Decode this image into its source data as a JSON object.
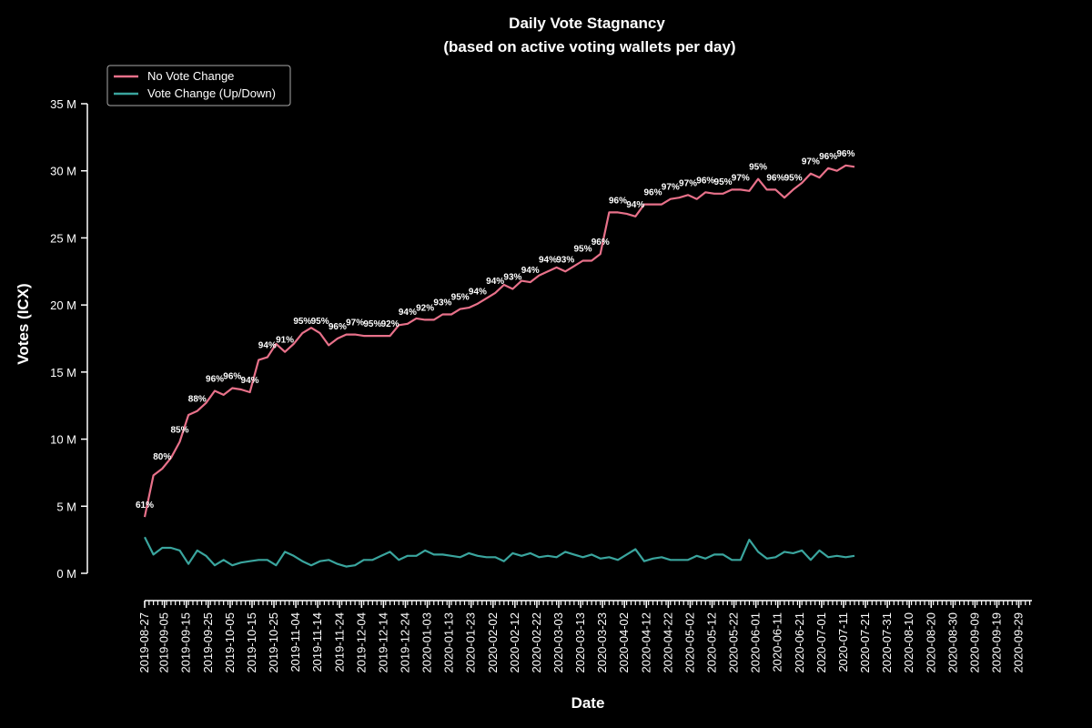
{
  "chart_data": {
    "type": "line",
    "title": "Daily Vote Stagnancy",
    "subtitle": "(based on active voting wallets per day)",
    "xlabel": "Date",
    "ylabel": "Votes (ICX)",
    "ylim": [
      0,
      35000000
    ],
    "yticks": [
      {
        "value": 0,
        "label": "0 M"
      },
      {
        "value": 5000000,
        "label": "5 M"
      },
      {
        "value": 10000000,
        "label": "10 M"
      },
      {
        "value": 15000000,
        "label": "15 M"
      },
      {
        "value": 20000000,
        "label": "20 M"
      },
      {
        "value": 25000000,
        "label": "25 M"
      },
      {
        "value": 30000000,
        "label": "30 M"
      },
      {
        "value": 35000000,
        "label": "35 M"
      }
    ],
    "xlim": [
      "2019-08-27",
      "2020-10-05"
    ],
    "xtick_labels": [
      "2019-08-27",
      "2019-09-05",
      "2019-09-15",
      "2019-09-25",
      "2019-10-05",
      "2019-10-15",
      "2019-10-25",
      "2019-11-04",
      "2019-11-14",
      "2019-11-24",
      "2019-12-04",
      "2019-12-14",
      "2019-12-24",
      "2020-01-03",
      "2020-01-13",
      "2020-01-23",
      "2020-02-02",
      "2020-02-12",
      "2020-02-22",
      "2020-03-03",
      "2020-03-13",
      "2020-03-23",
      "2020-04-02",
      "2020-04-12",
      "2020-04-22",
      "2020-05-02",
      "2020-05-12",
      "2020-05-22",
      "2020-06-01",
      "2020-06-11",
      "2020-06-21",
      "2020-07-01",
      "2020-07-11",
      "2020-07-21",
      "2020-07-31",
      "2020-08-10",
      "2020-08-20",
      "2020-08-30",
      "2020-09-09",
      "2020-09-19",
      "2020-09-29"
    ],
    "legend": {
      "placement": "top-left"
    },
    "series": [
      {
        "name": "No Vote Change",
        "color": "#e8718a",
        "points": [
          {
            "x": "2019-08-27",
            "y": 4.2
          },
          {
            "x": "2019-08-31",
            "y": 7.3
          },
          {
            "x": "2019-09-04",
            "y": 7.8
          },
          {
            "x": "2019-09-08",
            "y": 8.6
          },
          {
            "x": "2019-09-12",
            "y": 9.8
          },
          {
            "x": "2019-09-16",
            "y": 11.8
          },
          {
            "x": "2019-09-20",
            "y": 12.1
          },
          {
            "x": "2019-09-24",
            "y": 12.7
          },
          {
            "x": "2019-09-28",
            "y": 13.6
          },
          {
            "x": "2019-10-02",
            "y": 13.3
          },
          {
            "x": "2019-10-06",
            "y": 13.8
          },
          {
            "x": "2019-10-10",
            "y": 13.7
          },
          {
            "x": "2019-10-14",
            "y": 13.5
          },
          {
            "x": "2019-10-18",
            "y": 15.9
          },
          {
            "x": "2019-10-22",
            "y": 16.1
          },
          {
            "x": "2019-10-26",
            "y": 17.1
          },
          {
            "x": "2019-10-30",
            "y": 16.5
          },
          {
            "x": "2019-11-03",
            "y": 17.1
          },
          {
            "x": "2019-11-07",
            "y": 17.9
          },
          {
            "x": "2019-11-11",
            "y": 18.3
          },
          {
            "x": "2019-11-15",
            "y": 17.9
          },
          {
            "x": "2019-11-19",
            "y": 17.0
          },
          {
            "x": "2019-11-23",
            "y": 17.5
          },
          {
            "x": "2019-11-27",
            "y": 17.8
          },
          {
            "x": "2019-12-01",
            "y": 17.8
          },
          {
            "x": "2019-12-05",
            "y": 17.7
          },
          {
            "x": "2019-12-09",
            "y": 17.7
          },
          {
            "x": "2019-12-13",
            "y": 17.7
          },
          {
            "x": "2019-12-17",
            "y": 17.7
          },
          {
            "x": "2019-12-21",
            "y": 18.5
          },
          {
            "x": "2019-12-25",
            "y": 18.6
          },
          {
            "x": "2019-12-29",
            "y": 19.0
          },
          {
            "x": "2020-01-02",
            "y": 18.9
          },
          {
            "x": "2020-01-06",
            "y": 18.9
          },
          {
            "x": "2020-01-10",
            "y": 19.3
          },
          {
            "x": "2020-01-14",
            "y": 19.3
          },
          {
            "x": "2020-01-18",
            "y": 19.7
          },
          {
            "x": "2020-01-22",
            "y": 19.8
          },
          {
            "x": "2020-01-26",
            "y": 20.1
          },
          {
            "x": "2020-01-30",
            "y": 20.5
          },
          {
            "x": "2020-02-03",
            "y": 20.9
          },
          {
            "x": "2020-02-07",
            "y": 21.5
          },
          {
            "x": "2020-02-11",
            "y": 21.2
          },
          {
            "x": "2020-02-15",
            "y": 21.8
          },
          {
            "x": "2020-02-19",
            "y": 21.7
          },
          {
            "x": "2020-02-23",
            "y": 22.2
          },
          {
            "x": "2020-02-27",
            "y": 22.5
          },
          {
            "x": "2020-03-02",
            "y": 22.8
          },
          {
            "x": "2020-03-06",
            "y": 22.5
          },
          {
            "x": "2020-03-10",
            "y": 22.9
          },
          {
            "x": "2020-03-14",
            "y": 23.3
          },
          {
            "x": "2020-03-18",
            "y": 23.3
          },
          {
            "x": "2020-03-22",
            "y": 23.8
          },
          {
            "x": "2020-03-26",
            "y": 26.9
          },
          {
            "x": "2020-03-30",
            "y": 26.9
          },
          {
            "x": "2020-04-03",
            "y": 26.8
          },
          {
            "x": "2020-04-07",
            "y": 26.6
          },
          {
            "x": "2020-04-11",
            "y": 27.5
          },
          {
            "x": "2020-04-15",
            "y": 27.5
          },
          {
            "x": "2020-04-19",
            "y": 27.5
          },
          {
            "x": "2020-04-23",
            "y": 27.9
          },
          {
            "x": "2020-04-27",
            "y": 28.0
          },
          {
            "x": "2020-05-01",
            "y": 28.2
          },
          {
            "x": "2020-05-05",
            "y": 27.9
          },
          {
            "x": "2020-05-09",
            "y": 28.4
          },
          {
            "x": "2020-05-13",
            "y": 28.3
          },
          {
            "x": "2020-05-17",
            "y": 28.3
          },
          {
            "x": "2020-05-21",
            "y": 28.6
          },
          {
            "x": "2020-05-25",
            "y": 28.6
          },
          {
            "x": "2020-05-29",
            "y": 28.5
          },
          {
            "x": "2020-06-02",
            "y": 29.4
          },
          {
            "x": "2020-06-06",
            "y": 28.6
          },
          {
            "x": "2020-06-10",
            "y": 28.6
          },
          {
            "x": "2020-06-14",
            "y": 28.0
          },
          {
            "x": "2020-06-18",
            "y": 28.6
          },
          {
            "x": "2020-06-22",
            "y": 29.1
          },
          {
            "x": "2020-06-26",
            "y": 29.8
          },
          {
            "x": "2020-06-30",
            "y": 29.5
          },
          {
            "x": "2020-07-04",
            "y": 30.2
          },
          {
            "x": "2020-07-08",
            "y": 30.0
          },
          {
            "x": "2020-07-12",
            "y": 30.4
          },
          {
            "x": "2020-07-16",
            "y": 30.3
          }
        ]
      },
      {
        "name": "Vote Change (Up/Down)",
        "color": "#3aa59e",
        "points": [
          {
            "x": "2019-08-27",
            "y": 2.7
          },
          {
            "x": "2019-08-31",
            "y": 1.4
          },
          {
            "x": "2019-09-04",
            "y": 1.9
          },
          {
            "x": "2019-09-08",
            "y": 1.9
          },
          {
            "x": "2019-09-12",
            "y": 1.7
          },
          {
            "x": "2019-09-16",
            "y": 0.7
          },
          {
            "x": "2019-09-20",
            "y": 1.7
          },
          {
            "x": "2019-09-24",
            "y": 1.3
          },
          {
            "x": "2019-09-28",
            "y": 0.6
          },
          {
            "x": "2019-10-02",
            "y": 1.0
          },
          {
            "x": "2019-10-06",
            "y": 0.6
          },
          {
            "x": "2019-10-10",
            "y": 0.8
          },
          {
            "x": "2019-10-14",
            "y": 0.9
          },
          {
            "x": "2019-10-18",
            "y": 1.0
          },
          {
            "x": "2019-10-22",
            "y": 1.0
          },
          {
            "x": "2019-10-26",
            "y": 0.6
          },
          {
            "x": "2019-10-30",
            "y": 1.6
          },
          {
            "x": "2019-11-03",
            "y": 1.3
          },
          {
            "x": "2019-11-07",
            "y": 0.9
          },
          {
            "x": "2019-11-11",
            "y": 0.6
          },
          {
            "x": "2019-11-15",
            "y": 0.9
          },
          {
            "x": "2019-11-19",
            "y": 1.0
          },
          {
            "x": "2019-11-23",
            "y": 0.7
          },
          {
            "x": "2019-11-27",
            "y": 0.5
          },
          {
            "x": "2019-12-01",
            "y": 0.6
          },
          {
            "x": "2019-12-05",
            "y": 1.0
          },
          {
            "x": "2019-12-09",
            "y": 1.0
          },
          {
            "x": "2019-12-13",
            "y": 1.3
          },
          {
            "x": "2019-12-17",
            "y": 1.6
          },
          {
            "x": "2019-12-21",
            "y": 1.0
          },
          {
            "x": "2019-12-25",
            "y": 1.3
          },
          {
            "x": "2019-12-29",
            "y": 1.3
          },
          {
            "x": "2020-01-02",
            "y": 1.7
          },
          {
            "x": "2020-01-06",
            "y": 1.4
          },
          {
            "x": "2020-01-10",
            "y": 1.4
          },
          {
            "x": "2020-01-14",
            "y": 1.3
          },
          {
            "x": "2020-01-18",
            "y": 1.2
          },
          {
            "x": "2020-01-22",
            "y": 1.5
          },
          {
            "x": "2020-01-26",
            "y": 1.3
          },
          {
            "x": "2020-01-30",
            "y": 1.2
          },
          {
            "x": "2020-02-03",
            "y": 1.2
          },
          {
            "x": "2020-02-07",
            "y": 0.9
          },
          {
            "x": "2020-02-11",
            "y": 1.5
          },
          {
            "x": "2020-02-15",
            "y": 1.3
          },
          {
            "x": "2020-02-19",
            "y": 1.5
          },
          {
            "x": "2020-02-23",
            "y": 1.2
          },
          {
            "x": "2020-02-27",
            "y": 1.3
          },
          {
            "x": "2020-03-02",
            "y": 1.2
          },
          {
            "x": "2020-03-06",
            "y": 1.6
          },
          {
            "x": "2020-03-10",
            "y": 1.4
          },
          {
            "x": "2020-03-14",
            "y": 1.2
          },
          {
            "x": "2020-03-18",
            "y": 1.4
          },
          {
            "x": "2020-03-22",
            "y": 1.1
          },
          {
            "x": "2020-03-26",
            "y": 1.2
          },
          {
            "x": "2020-03-30",
            "y": 1.0
          },
          {
            "x": "2020-04-03",
            "y": 1.4
          },
          {
            "x": "2020-04-07",
            "y": 1.8
          },
          {
            "x": "2020-04-11",
            "y": 0.9
          },
          {
            "x": "2020-04-15",
            "y": 1.1
          },
          {
            "x": "2020-04-19",
            "y": 1.2
          },
          {
            "x": "2020-04-23",
            "y": 1.0
          },
          {
            "x": "2020-04-27",
            "y": 1.0
          },
          {
            "x": "2020-05-01",
            "y": 1.0
          },
          {
            "x": "2020-05-05",
            "y": 1.3
          },
          {
            "x": "2020-05-09",
            "y": 1.1
          },
          {
            "x": "2020-05-13",
            "y": 1.4
          },
          {
            "x": "2020-05-17",
            "y": 1.4
          },
          {
            "x": "2020-05-21",
            "y": 1.0
          },
          {
            "x": "2020-05-25",
            "y": 1.0
          },
          {
            "x": "2020-05-29",
            "y": 2.5
          },
          {
            "x": "2020-06-02",
            "y": 1.6
          },
          {
            "x": "2020-06-06",
            "y": 1.1
          },
          {
            "x": "2020-06-10",
            "y": 1.2
          },
          {
            "x": "2020-06-14",
            "y": 1.6
          },
          {
            "x": "2020-06-18",
            "y": 1.5
          },
          {
            "x": "2020-06-22",
            "y": 1.7
          },
          {
            "x": "2020-06-26",
            "y": 1.0
          },
          {
            "x": "2020-06-30",
            "y": 1.7
          },
          {
            "x": "2020-07-04",
            "y": 1.2
          },
          {
            "x": "2020-07-08",
            "y": 1.3
          },
          {
            "x": "2020-07-12",
            "y": 1.2
          },
          {
            "x": "2020-07-16",
            "y": 1.3
          }
        ]
      }
    ],
    "annotations": [
      {
        "x": "2019-08-27",
        "y": 4.2,
        "text": "61%"
      },
      {
        "x": "2019-09-04",
        "y": 7.8,
        "text": "80%"
      },
      {
        "x": "2019-09-12",
        "y": 9.8,
        "text": "85%"
      },
      {
        "x": "2019-09-20",
        "y": 12.1,
        "text": "88%"
      },
      {
        "x": "2019-09-28",
        "y": 13.6,
        "text": "96%"
      },
      {
        "x": "2019-10-06",
        "y": 13.8,
        "text": "96%"
      },
      {
        "x": "2019-10-14",
        "y": 13.5,
        "text": "94%"
      },
      {
        "x": "2019-10-22",
        "y": 16.1,
        "text": "94%"
      },
      {
        "x": "2019-10-30",
        "y": 16.5,
        "text": "91%"
      },
      {
        "x": "2019-11-07",
        "y": 17.9,
        "text": "95%"
      },
      {
        "x": "2019-11-15",
        "y": 17.9,
        "text": "95%"
      },
      {
        "x": "2019-11-23",
        "y": 17.5,
        "text": "96%"
      },
      {
        "x": "2019-12-01",
        "y": 17.8,
        "text": "97%"
      },
      {
        "x": "2019-12-09",
        "y": 17.7,
        "text": "95%"
      },
      {
        "x": "2019-12-17",
        "y": 17.7,
        "text": "92%"
      },
      {
        "x": "2019-12-25",
        "y": 18.6,
        "text": "94%"
      },
      {
        "x": "2020-01-02",
        "y": 18.9,
        "text": "92%"
      },
      {
        "x": "2020-01-10",
        "y": 19.3,
        "text": "93%"
      },
      {
        "x": "2020-01-18",
        "y": 19.7,
        "text": "95%"
      },
      {
        "x": "2020-01-26",
        "y": 20.1,
        "text": "94%"
      },
      {
        "x": "2020-02-03",
        "y": 20.9,
        "text": "94%"
      },
      {
        "x": "2020-02-11",
        "y": 21.2,
        "text": "93%"
      },
      {
        "x": "2020-02-19",
        "y": 21.7,
        "text": "94%"
      },
      {
        "x": "2020-02-27",
        "y": 22.5,
        "text": "94%"
      },
      {
        "x": "2020-03-06",
        "y": 22.5,
        "text": "93%"
      },
      {
        "x": "2020-03-14",
        "y": 23.3,
        "text": "95%"
      },
      {
        "x": "2020-03-22",
        "y": 23.8,
        "text": "96%"
      },
      {
        "x": "2020-03-30",
        "y": 26.9,
        "text": "96%"
      },
      {
        "x": "2020-04-07",
        "y": 26.6,
        "text": "94%"
      },
      {
        "x": "2020-04-15",
        "y": 27.5,
        "text": "96%"
      },
      {
        "x": "2020-04-23",
        "y": 27.9,
        "text": "97%"
      },
      {
        "x": "2020-05-01",
        "y": 28.2,
        "text": "97%"
      },
      {
        "x": "2020-05-09",
        "y": 28.4,
        "text": "96%"
      },
      {
        "x": "2020-05-17",
        "y": 28.3,
        "text": "95%"
      },
      {
        "x": "2020-05-25",
        "y": 28.6,
        "text": "97%"
      },
      {
        "x": "2020-06-02",
        "y": 29.4,
        "text": "95%"
      },
      {
        "x": "2020-06-10",
        "y": 28.6,
        "text": "96%"
      },
      {
        "x": "2020-06-18",
        "y": 28.6,
        "text": "95%"
      },
      {
        "x": "2020-06-26",
        "y": 29.8,
        "text": "97%"
      },
      {
        "x": "2020-07-04",
        "y": 30.2,
        "text": "96%"
      },
      {
        "x": "2020-07-12",
        "y": 30.4,
        "text": "96%"
      }
    ],
    "grid": false
  }
}
